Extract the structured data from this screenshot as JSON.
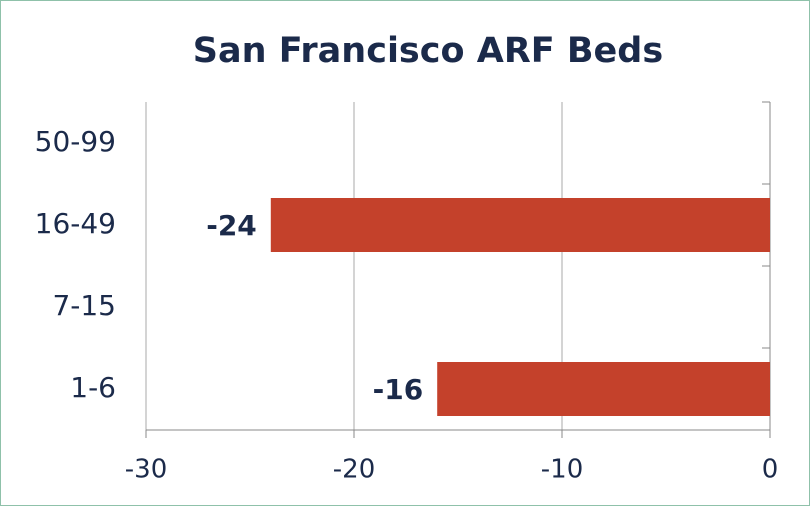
{
  "chart_data": {
    "type": "barh",
    "title": "San Francisco ARF Beds",
    "categories": [
      "50-99",
      "16-49",
      "7-15",
      "1-6"
    ],
    "values": [
      null,
      -24,
      null,
      -16
    ],
    "color": "#c4412b",
    "xlim": [
      -30,
      0
    ],
    "xticks": [
      -30,
      -20,
      -10,
      0
    ],
    "grid": true
  }
}
